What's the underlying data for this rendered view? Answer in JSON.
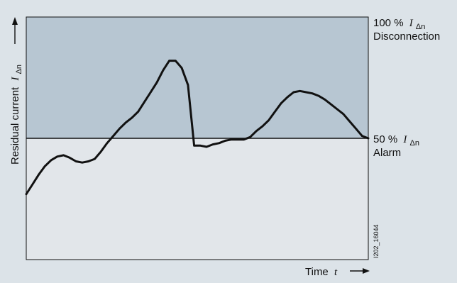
{
  "colors": {
    "background": "#dce3e8",
    "disconnection_zone": "#b7c6d2",
    "alarm_zone": "#e2e6ea",
    "curve": "#111111",
    "line": "#111111"
  },
  "y_axis": {
    "label": "Residual current",
    "symbol": "I",
    "subscript": "Δn",
    "arrow": "arrow-up"
  },
  "x_axis": {
    "label": "Time",
    "symbol": "t",
    "arrow": "arrow-right"
  },
  "levels": {
    "top": {
      "percent": "100 %",
      "symbol": "I",
      "subscript": "Δn",
      "name": "Disconnection",
      "level_fraction": 1.0
    },
    "alarm": {
      "percent": "50 %",
      "symbol": "I",
      "subscript": "Δn",
      "name": "Alarm",
      "level_fraction": 0.5
    }
  },
  "figure_code": "I202_16044",
  "curve": {
    "description_values_fraction_of_IΔn": [
      0.27,
      0.31,
      0.35,
      0.385,
      0.41,
      0.425,
      0.43,
      0.42,
      0.405,
      0.4,
      0.405,
      0.415,
      0.445,
      0.48,
      0.51,
      0.54,
      0.565,
      0.585,
      0.61,
      0.65,
      0.69,
      0.73,
      0.78,
      0.82,
      0.82,
      0.79,
      0.72,
      0.47,
      0.47,
      0.465,
      0.475,
      0.48,
      0.49,
      0.495,
      0.495,
      0.495,
      0.505,
      0.53,
      0.55,
      0.575,
      0.61,
      0.645,
      0.67,
      0.69,
      0.695,
      0.69,
      0.685,
      0.675,
      0.66,
      0.64,
      0.62,
      0.6,
      0.57,
      0.54,
      0.51,
      0.5
    ]
  }
}
